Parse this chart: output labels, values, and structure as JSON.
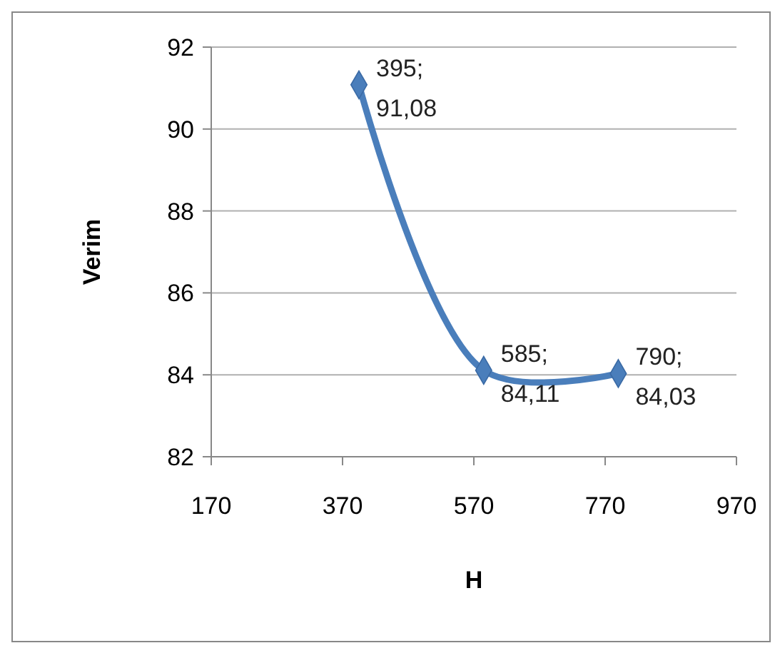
{
  "chart_data": {
    "type": "line",
    "xlabel": "H",
    "ylabel": "Verim",
    "x": [
      395,
      585,
      790
    ],
    "series": [
      {
        "color": "#4a7ebb",
        "values": [
          91.08,
          84.11,
          84.03
        ],
        "value_labels": [
          "395; 91,08",
          "585; 84,11",
          "790; 84,03"
        ]
      }
    ],
    "xlim": [
      170,
      970
    ],
    "xticks": [
      170,
      370,
      570,
      770,
      970
    ],
    "ylim": [
      82,
      92
    ],
    "yticks": [
      82,
      84,
      86,
      88,
      90,
      92
    ],
    "grid": "y",
    "marker": "diamond",
    "line_style": "solid"
  }
}
